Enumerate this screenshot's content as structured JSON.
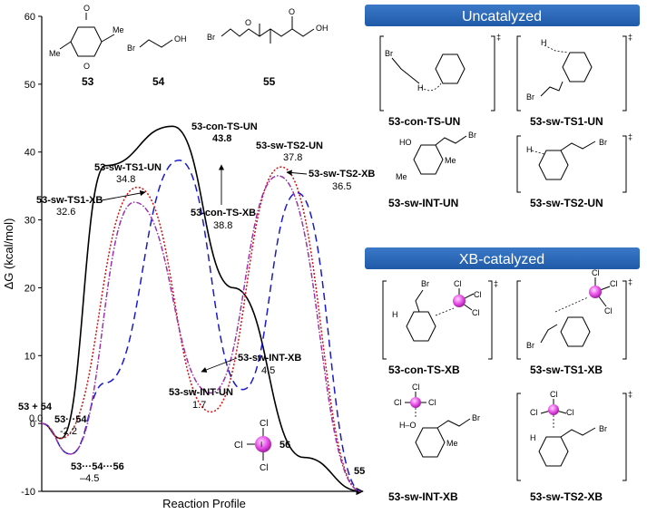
{
  "chart_data": {
    "type": "line",
    "ylabel": "ΔG (kcal/mol)",
    "xlabel": "Reaction Profile",
    "ylim": [
      -10,
      60
    ],
    "yticks": [
      -10,
      0,
      10,
      20,
      30,
      40,
      50,
      60
    ],
    "series": [
      {
        "color": "#000000",
        "dash": "none",
        "x": [
          0,
          6,
          20,
          41,
          60,
          82,
          100
        ],
        "y": [
          0.0,
          -2.2,
          38.0,
          43.8,
          20.0,
          -5.0,
          -10.0
        ]
      },
      {
        "color": "#1a1acc",
        "dash": "8 5",
        "x": [
          0,
          9,
          20,
          43,
          63,
          80,
          100
        ],
        "y": [
          0.0,
          -4.5,
          6.0,
          38.8,
          5.0,
          34.0,
          -10.0
        ]
      },
      {
        "color": "#cc1111",
        "dash": "2 2",
        "x": [
          0,
          6,
          30,
          53,
          75,
          100
        ],
        "y": [
          0.0,
          -2.2,
          34.8,
          1.7,
          37.8,
          -10.0
        ]
      },
      {
        "color": "#9933aa",
        "dash": "6 2 1.5 2",
        "x": [
          0,
          9,
          29,
          53,
          74,
          100
        ],
        "y": [
          0.0,
          -4.5,
          32.6,
          4.5,
          36.5,
          -10.0
        ]
      }
    ],
    "annotations": [
      {
        "name": "53 + 54",
        "value": "0.0"
      },
      {
        "name": "53···54",
        "value": "-2.2"
      },
      {
        "name": "53···54···56",
        "value": "–4.5"
      },
      {
        "name": "53-sw-TS1-UN",
        "value": "34.8"
      },
      {
        "name": "53-sw-TS1-XB",
        "value": "32.6"
      },
      {
        "name": "53-con-TS-UN",
        "value": "43.8"
      },
      {
        "name": "53-con-TS-XB",
        "value": "38.8"
      },
      {
        "name": "53-sw-TS2-UN",
        "value": "37.8"
      },
      {
        "name": "53-sw-TS2-XB",
        "value": "36.5"
      },
      {
        "name": "53-sw-INT-XB",
        "value": "4.5"
      },
      {
        "name": "53-sw-INT-UN",
        "value": "1.7"
      },
      {
        "name": "55",
        "value": ""
      }
    ]
  },
  "compounds": {
    "c53": "53",
    "c54": "54",
    "c55": "55",
    "c56": "56"
  },
  "panels": {
    "uncatalyzed": {
      "title": "Uncatalyzed",
      "items": [
        "53-con-TS-UN",
        "53-sw-TS1-UN",
        "53-sw-INT-UN",
        "53-sw-TS2-UN"
      ]
    },
    "xb": {
      "title": "XB-catalyzed",
      "items": [
        "53-con-TS-XB",
        "53-sw-TS1-XB",
        "53-sw-INT-XB",
        "53-sw-TS2-XB"
      ]
    }
  },
  "atoms": {
    "O": "O",
    "OH": "OH",
    "Br": "Br",
    "Me": "Me",
    "H": "H",
    "HO": "HO",
    "Cl": "Cl",
    "I": "I",
    "H_O": "H–O",
    "dagger": "‡"
  }
}
